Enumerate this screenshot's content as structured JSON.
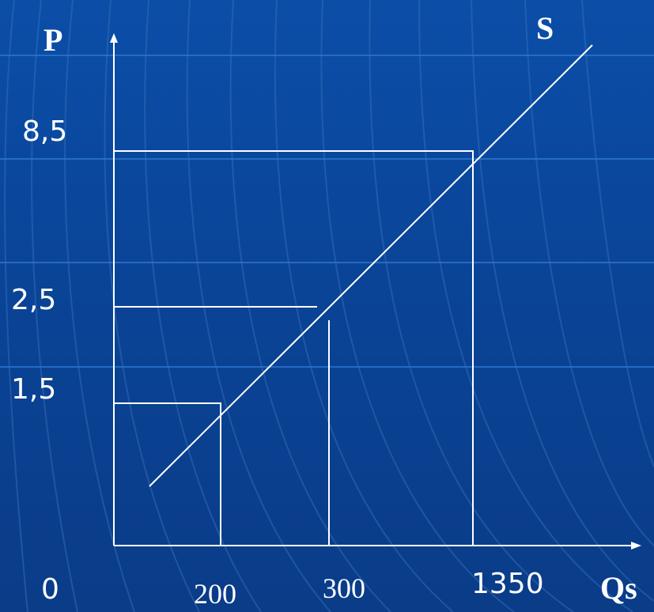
{
  "colors": {
    "background": "#0a4497",
    "grid_lines": "#2d78d2",
    "swirl_lines": "#3a73bd",
    "drawing": "#ffffff"
  },
  "labels": {
    "y_axis": "P",
    "x_axis": "Qs",
    "curve": "S",
    "origin": "0",
    "p1": "1,5",
    "p2": "2,5",
    "p3": "8,5",
    "q1": "200",
    "q2": "300",
    "q3": "1350"
  }
}
